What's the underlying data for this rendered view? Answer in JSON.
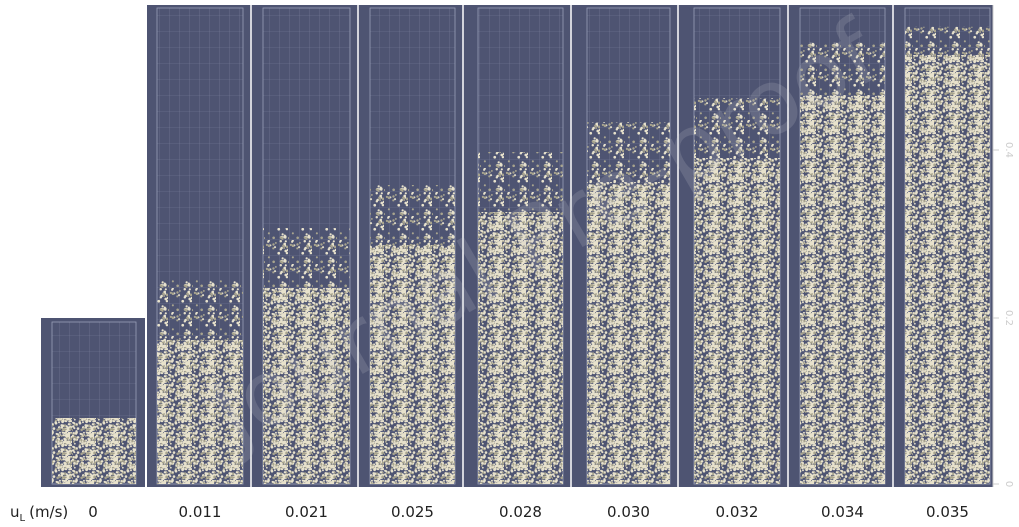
{
  "figure": {
    "velocity_label": {
      "symbol": "u",
      "subscript": "L",
      "unit": "(m/s)"
    },
    "velocities": [
      "0",
      "0.011",
      "0.021",
      "0.025",
      "0.028",
      "0.030",
      "0.032",
      "0.034",
      "0.035"
    ],
    "height_ticks": [
      "0",
      "0.2",
      "0.4"
    ],
    "watermark": "Journal Pre-proof"
  }
}
